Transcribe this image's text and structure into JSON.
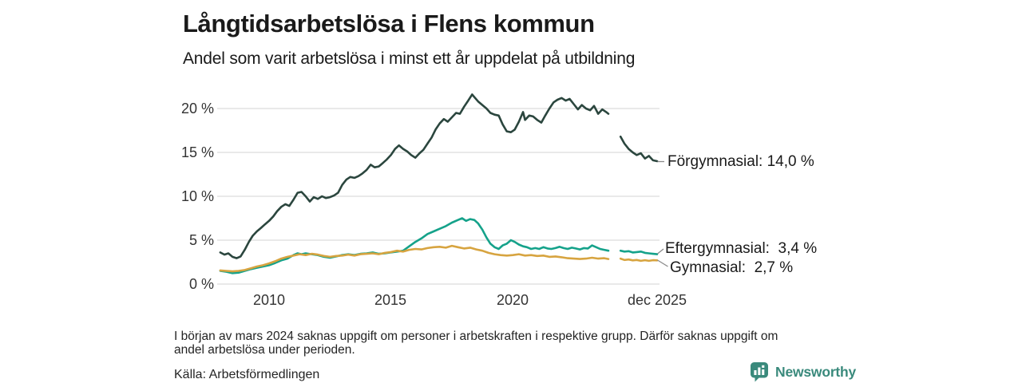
{
  "header": {
    "title": "Långtidsarbetslösa i Flens kommun",
    "subtitle": "Andel som varit arbetslösa i minst ett år uppdelat på utbildning"
  },
  "chart_data": {
    "type": "line",
    "title": "Långtidsarbetslösa i Flens kommun",
    "subtitle": "Andel som varit arbetslösa i minst ett år uppdelat på utbildning",
    "x_unit": "decimal_year",
    "xlim": [
      2007.9,
      2026.1
    ],
    "ylim": [
      0,
      22.5
    ],
    "grid": "horizontal",
    "legend_position": "right-end-labels",
    "colors": {
      "forgymnasial": "#2b463e",
      "eftergymnasial": "#15a28a",
      "gymnasial": "#d7a440",
      "gridline": "#dcdcdc",
      "connector": "#8a8a8a"
    },
    "y_ticks": [
      {
        "value": 20,
        "label": "20 %"
      },
      {
        "value": 15,
        "label": "15 %"
      },
      {
        "value": 10,
        "label": "10 %"
      },
      {
        "value": 5,
        "label": "5 %"
      },
      {
        "value": 0,
        "label": "0 %"
      }
    ],
    "x_ticks": [
      {
        "value": 2010,
        "label": "2010"
      },
      {
        "value": 2015,
        "label": "2015"
      },
      {
        "value": 2020,
        "label": "2020"
      },
      {
        "value": 2025.92,
        "label": "dec 2025"
      }
    ],
    "data_gap": {
      "from": 2023.95,
      "to": 2024.4,
      "reason": "saknas uppgift"
    },
    "series": [
      {
        "key": "forgymnasial",
        "name": "Förgymnasial",
        "end_label": "Förgymnasial: 14,0 %",
        "end_value_pct": 14.0,
        "color": "#2b463e",
        "points": [
          [
            2008.0,
            3.6
          ],
          [
            2008.17,
            3.35
          ],
          [
            2008.33,
            3.5
          ],
          [
            2008.5,
            3.1
          ],
          [
            2008.67,
            2.95
          ],
          [
            2008.83,
            3.15
          ],
          [
            2009.0,
            3.9
          ],
          [
            2009.17,
            4.8
          ],
          [
            2009.33,
            5.5
          ],
          [
            2009.5,
            6.0
          ],
          [
            2009.67,
            6.4
          ],
          [
            2009.83,
            6.8
          ],
          [
            2010.0,
            7.2
          ],
          [
            2010.17,
            7.7
          ],
          [
            2010.33,
            8.3
          ],
          [
            2010.5,
            8.8
          ],
          [
            2010.67,
            9.1
          ],
          [
            2010.83,
            8.9
          ],
          [
            2011.0,
            9.6
          ],
          [
            2011.17,
            10.4
          ],
          [
            2011.33,
            10.5
          ],
          [
            2011.5,
            10.0
          ],
          [
            2011.67,
            9.4
          ],
          [
            2011.83,
            9.9
          ],
          [
            2012.0,
            9.7
          ],
          [
            2012.17,
            10.0
          ],
          [
            2012.33,
            9.8
          ],
          [
            2012.5,
            9.9
          ],
          [
            2012.67,
            10.1
          ],
          [
            2012.83,
            10.4
          ],
          [
            2013.0,
            11.3
          ],
          [
            2013.17,
            11.9
          ],
          [
            2013.33,
            12.2
          ],
          [
            2013.5,
            12.1
          ],
          [
            2013.67,
            12.3
          ],
          [
            2013.83,
            12.6
          ],
          [
            2014.0,
            13.0
          ],
          [
            2014.17,
            13.6
          ],
          [
            2014.33,
            13.3
          ],
          [
            2014.5,
            13.4
          ],
          [
            2014.67,
            13.8
          ],
          [
            2014.83,
            14.2
          ],
          [
            2015.0,
            14.7
          ],
          [
            2015.17,
            15.4
          ],
          [
            2015.33,
            15.8
          ],
          [
            2015.5,
            15.4
          ],
          [
            2015.67,
            15.1
          ],
          [
            2015.83,
            14.7
          ],
          [
            2016.0,
            14.4
          ],
          [
            2016.17,
            14.9
          ],
          [
            2016.33,
            15.3
          ],
          [
            2016.5,
            16.0
          ],
          [
            2016.67,
            16.7
          ],
          [
            2016.83,
            17.6
          ],
          [
            2017.0,
            18.3
          ],
          [
            2017.17,
            18.8
          ],
          [
            2017.33,
            18.5
          ],
          [
            2017.5,
            19.0
          ],
          [
            2017.67,
            19.5
          ],
          [
            2017.83,
            19.4
          ],
          [
            2018.0,
            20.2
          ],
          [
            2018.17,
            20.9
          ],
          [
            2018.33,
            21.6
          ],
          [
            2018.42,
            21.3
          ],
          [
            2018.58,
            20.8
          ],
          [
            2018.75,
            20.4
          ],
          [
            2018.92,
            20.0
          ],
          [
            2019.08,
            19.5
          ],
          [
            2019.25,
            19.3
          ],
          [
            2019.42,
            19.2
          ],
          [
            2019.58,
            18.2
          ],
          [
            2019.75,
            17.4
          ],
          [
            2019.92,
            17.3
          ],
          [
            2020.08,
            17.6
          ],
          [
            2020.25,
            18.5
          ],
          [
            2020.42,
            19.6
          ],
          [
            2020.5,
            18.7
          ],
          [
            2020.67,
            19.2
          ],
          [
            2020.83,
            19.1
          ],
          [
            2021.0,
            18.7
          ],
          [
            2021.17,
            18.4
          ],
          [
            2021.33,
            19.2
          ],
          [
            2021.5,
            20.0
          ],
          [
            2021.67,
            20.7
          ],
          [
            2021.83,
            21.0
          ],
          [
            2022.0,
            21.2
          ],
          [
            2022.17,
            20.9
          ],
          [
            2022.33,
            21.1
          ],
          [
            2022.5,
            20.5
          ],
          [
            2022.67,
            19.9
          ],
          [
            2022.83,
            20.4
          ],
          [
            2023.0,
            20.0
          ],
          [
            2023.17,
            19.8
          ],
          [
            2023.33,
            20.3
          ],
          [
            2023.5,
            19.4
          ],
          [
            2023.67,
            19.9
          ],
          [
            2023.83,
            19.6
          ],
          [
            2023.92,
            19.4
          ],
          [
            2024.05,
            null
          ],
          [
            2024.42,
            16.8
          ],
          [
            2024.58,
            16.0
          ],
          [
            2024.75,
            15.4
          ],
          [
            2024.92,
            15.0
          ],
          [
            2025.08,
            14.7
          ],
          [
            2025.25,
            14.9
          ],
          [
            2025.42,
            14.3
          ],
          [
            2025.58,
            14.6
          ],
          [
            2025.75,
            14.1
          ],
          [
            2025.92,
            14.0
          ]
        ]
      },
      {
        "key": "eftergymnasial",
        "name": "Eftergymnasial",
        "end_label": "Eftergymnasial:  3,4 %",
        "end_value_pct": 3.4,
        "color": "#15a28a",
        "points": [
          [
            2008.0,
            1.5
          ],
          [
            2008.25,
            1.4
          ],
          [
            2008.5,
            1.25
          ],
          [
            2008.75,
            1.3
          ],
          [
            2009.0,
            1.5
          ],
          [
            2009.25,
            1.7
          ],
          [
            2009.5,
            1.85
          ],
          [
            2009.75,
            2.0
          ],
          [
            2010.0,
            2.15
          ],
          [
            2010.25,
            2.4
          ],
          [
            2010.5,
            2.7
          ],
          [
            2010.75,
            2.9
          ],
          [
            2011.0,
            3.3
          ],
          [
            2011.17,
            3.5
          ],
          [
            2011.33,
            3.4
          ],
          [
            2011.5,
            3.5
          ],
          [
            2011.75,
            3.4
          ],
          [
            2012.0,
            3.3
          ],
          [
            2012.25,
            3.1
          ],
          [
            2012.5,
            3.0
          ],
          [
            2012.75,
            3.15
          ],
          [
            2013.0,
            3.3
          ],
          [
            2013.25,
            3.4
          ],
          [
            2013.5,
            3.3
          ],
          [
            2013.75,
            3.45
          ],
          [
            2014.0,
            3.5
          ],
          [
            2014.25,
            3.6
          ],
          [
            2014.5,
            3.45
          ],
          [
            2014.75,
            3.5
          ],
          [
            2015.0,
            3.6
          ],
          [
            2015.25,
            3.7
          ],
          [
            2015.5,
            3.8
          ],
          [
            2015.75,
            4.3
          ],
          [
            2016.0,
            4.8
          ],
          [
            2016.25,
            5.2
          ],
          [
            2016.5,
            5.7
          ],
          [
            2016.75,
            6.0
          ],
          [
            2017.0,
            6.3
          ],
          [
            2017.25,
            6.6
          ],
          [
            2017.5,
            7.0
          ],
          [
            2017.75,
            7.3
          ],
          [
            2017.92,
            7.5
          ],
          [
            2018.08,
            7.2
          ],
          [
            2018.25,
            7.4
          ],
          [
            2018.42,
            7.3
          ],
          [
            2018.58,
            6.9
          ],
          [
            2018.75,
            6.2
          ],
          [
            2018.92,
            5.3
          ],
          [
            2019.08,
            4.6
          ],
          [
            2019.25,
            4.2
          ],
          [
            2019.42,
            4.0
          ],
          [
            2019.58,
            4.4
          ],
          [
            2019.75,
            4.6
          ],
          [
            2019.92,
            5.0
          ],
          [
            2020.08,
            4.8
          ],
          [
            2020.25,
            4.5
          ],
          [
            2020.42,
            4.3
          ],
          [
            2020.58,
            4.2
          ],
          [
            2020.75,
            4.0
          ],
          [
            2020.92,
            4.1
          ],
          [
            2021.08,
            4.0
          ],
          [
            2021.25,
            4.2
          ],
          [
            2021.42,
            4.05
          ],
          [
            2021.58,
            4.0
          ],
          [
            2021.75,
            4.1
          ],
          [
            2021.92,
            4.25
          ],
          [
            2022.08,
            4.1
          ],
          [
            2022.25,
            4.0
          ],
          [
            2022.42,
            4.15
          ],
          [
            2022.58,
            4.05
          ],
          [
            2022.75,
            3.95
          ],
          [
            2022.92,
            4.1
          ],
          [
            2023.08,
            4.05
          ],
          [
            2023.25,
            4.4
          ],
          [
            2023.42,
            4.2
          ],
          [
            2023.58,
            4.0
          ],
          [
            2023.75,
            3.9
          ],
          [
            2023.92,
            3.8
          ],
          [
            2024.05,
            null
          ],
          [
            2024.42,
            3.8
          ],
          [
            2024.58,
            3.7
          ],
          [
            2024.75,
            3.75
          ],
          [
            2024.92,
            3.6
          ],
          [
            2025.08,
            3.65
          ],
          [
            2025.25,
            3.7
          ],
          [
            2025.42,
            3.55
          ],
          [
            2025.58,
            3.5
          ],
          [
            2025.75,
            3.45
          ],
          [
            2025.92,
            3.4
          ]
        ]
      },
      {
        "key": "gymnasial",
        "name": "Gymnasial",
        "end_label": "Gymnasial:  2,7 %",
        "end_value_pct": 2.7,
        "color": "#d7a440",
        "points": [
          [
            2008.0,
            1.55
          ],
          [
            2008.25,
            1.5
          ],
          [
            2008.5,
            1.45
          ],
          [
            2008.75,
            1.5
          ],
          [
            2009.0,
            1.6
          ],
          [
            2009.25,
            1.8
          ],
          [
            2009.5,
            2.0
          ],
          [
            2009.75,
            2.15
          ],
          [
            2010.0,
            2.35
          ],
          [
            2010.25,
            2.6
          ],
          [
            2010.5,
            2.9
          ],
          [
            2010.75,
            3.1
          ],
          [
            2011.0,
            3.25
          ],
          [
            2011.25,
            3.4
          ],
          [
            2011.5,
            3.3
          ],
          [
            2011.75,
            3.45
          ],
          [
            2012.0,
            3.35
          ],
          [
            2012.25,
            3.2
          ],
          [
            2012.5,
            3.1
          ],
          [
            2012.75,
            3.2
          ],
          [
            2013.0,
            3.25
          ],
          [
            2013.25,
            3.35
          ],
          [
            2013.5,
            3.25
          ],
          [
            2013.75,
            3.4
          ],
          [
            2014.0,
            3.45
          ],
          [
            2014.25,
            3.5
          ],
          [
            2014.5,
            3.4
          ],
          [
            2014.75,
            3.55
          ],
          [
            2015.0,
            3.65
          ],
          [
            2015.25,
            3.8
          ],
          [
            2015.5,
            3.7
          ],
          [
            2015.75,
            3.9
          ],
          [
            2016.0,
            4.0
          ],
          [
            2016.25,
            3.95
          ],
          [
            2016.5,
            4.1
          ],
          [
            2016.75,
            4.2
          ],
          [
            2017.0,
            4.25
          ],
          [
            2017.25,
            4.15
          ],
          [
            2017.5,
            4.35
          ],
          [
            2017.75,
            4.2
          ],
          [
            2018.0,
            4.05
          ],
          [
            2018.25,
            4.15
          ],
          [
            2018.5,
            3.95
          ],
          [
            2018.75,
            3.8
          ],
          [
            2019.0,
            3.55
          ],
          [
            2019.25,
            3.4
          ],
          [
            2019.5,
            3.3
          ],
          [
            2019.75,
            3.25
          ],
          [
            2020.0,
            3.3
          ],
          [
            2020.25,
            3.4
          ],
          [
            2020.5,
            3.25
          ],
          [
            2020.75,
            3.3
          ],
          [
            2021.0,
            3.2
          ],
          [
            2021.25,
            3.25
          ],
          [
            2021.5,
            3.1
          ],
          [
            2021.75,
            3.15
          ],
          [
            2022.0,
            3.05
          ],
          [
            2022.25,
            2.95
          ],
          [
            2022.5,
            2.9
          ],
          [
            2022.75,
            2.85
          ],
          [
            2023.0,
            2.9
          ],
          [
            2023.25,
            3.0
          ],
          [
            2023.5,
            2.9
          ],
          [
            2023.75,
            2.95
          ],
          [
            2023.92,
            2.85
          ],
          [
            2024.05,
            null
          ],
          [
            2024.42,
            2.9
          ],
          [
            2024.58,
            2.75
          ],
          [
            2024.75,
            2.8
          ],
          [
            2024.92,
            2.7
          ],
          [
            2025.08,
            2.75
          ],
          [
            2025.25,
            2.65
          ],
          [
            2025.42,
            2.72
          ],
          [
            2025.58,
            2.65
          ],
          [
            2025.75,
            2.72
          ],
          [
            2025.92,
            2.7
          ]
        ]
      }
    ]
  },
  "footer": {
    "note_lines": [
      "I början av mars 2024 saknas uppgift om personer i arbetskraften i respektive grupp. Därför saknas uppgift om",
      "andel arbetslösa under perioden."
    ],
    "source": "Källa: Arbetsförmedlingen"
  },
  "branding": {
    "logo_text": "Newsworthy",
    "color": "#3a8a7c"
  }
}
